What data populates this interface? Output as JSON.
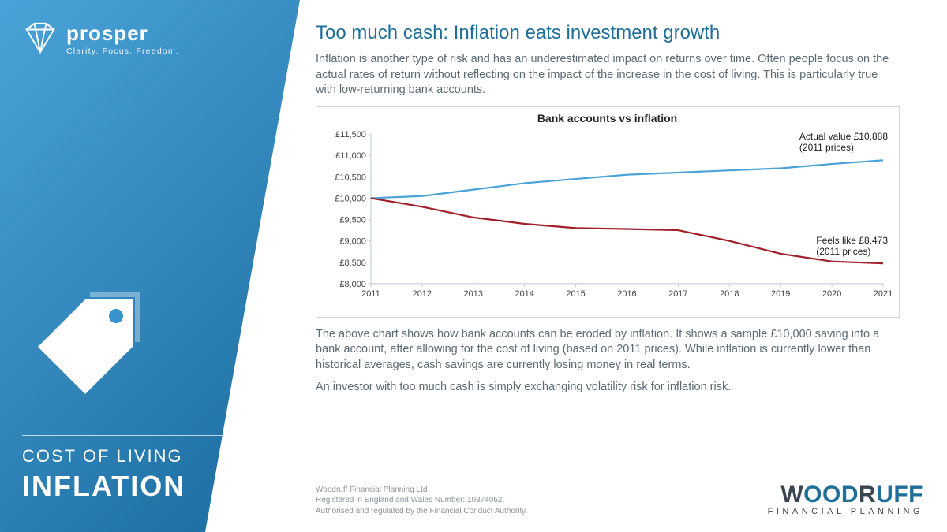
{
  "sidebar": {
    "brand": "prosper",
    "tagline": "Clarity. Focus. Freedom.",
    "title_line1": "COST OF LIVING",
    "title_line2": "INFLATION",
    "bg_gradient": [
      "#4aa3d8",
      "#1a6a9e"
    ],
    "text_color": "#ffffff"
  },
  "content": {
    "headline": "Too much cash: Inflation eats investment growth",
    "headline_color": "#1f6f9a",
    "intro": "Inflation is another type of risk and has an underestimated impact on returns over time.  Often people focus on the actual rates of return without reflecting on the impact of the increase in the cost of living. This is particularly true with low-returning bank accounts.",
    "explainer": "The above chart shows how bank accounts can be eroded by inflation.  It shows a sample £10,000 saving into a bank account, after allowing for the cost of living (based on 2011 prices). While inflation is currently lower than historical averages, cash savings are currently losing money in real terms.",
    "closing": "An investor with too much cash is simply exchanging volatility risk for inflation risk.",
    "body_color": "#5b6a73",
    "body_fontsize": 14.5
  },
  "chart": {
    "type": "line",
    "title": "Bank accounts vs inflation",
    "title_fontsize": 14,
    "xlabels": [
      "2011",
      "2012",
      "2013",
      "2014",
      "2015",
      "2016",
      "2017",
      "2018",
      "2019",
      "2020",
      "2021"
    ],
    "ylim": [
      8000,
      11500
    ],
    "ytick_step": 500,
    "yticks": [
      "£11,500",
      "£11,000",
      "£10,500",
      "£10,000",
      "£9,500",
      "£9,000",
      "£8,500",
      "£8,000"
    ],
    "grid": false,
    "axis_color": "#bfc8cf",
    "label_fontsize": 11,
    "background_color": "#ffffff",
    "series": [
      {
        "name": "Actual value",
        "color": "#4aa3d8",
        "line_width": 2.2,
        "values": [
          10000,
          10050,
          10200,
          10350,
          10450,
          10550,
          10600,
          10650,
          10700,
          10800,
          10888
        ],
        "annotation": "Actual value £10,888\n(2011 prices)"
      },
      {
        "name": "Real (feels like)",
        "color": "#a01f28",
        "line_width": 2.2,
        "values": [
          10000,
          9800,
          9550,
          9400,
          9300,
          9280,
          9250,
          9000,
          8700,
          8520,
          8473
        ],
        "annotation": "Feels like £8,473\n(2011 prices)"
      }
    ]
  },
  "footer": {
    "disclaimer_l1": "Woodruff Financial Planning Ltd",
    "disclaimer_l2": "Registered in England and Wales Number: 10374052.",
    "disclaimer_l3": "Authorised and regulated by the Financial Conduct Authority.",
    "logo_main": "WOODRUFF",
    "logo_sub": "FINANCIAL PLANNING",
    "logo_color_primary": "#1f6f9a",
    "logo_color_secondary": "#3a4650"
  }
}
